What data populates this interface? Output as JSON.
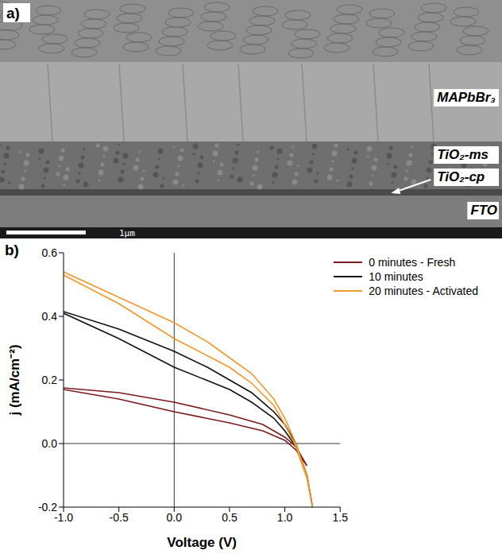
{
  "sem_image": {
    "letter": "a)",
    "layers": [
      "MAPbBr₃",
      "TiO₂-ms",
      "TiO₂-cp",
      "FTO"
    ],
    "scale_bar": "1μm"
  },
  "chart_letter": "b)",
  "chart_data": {
    "type": "line",
    "x_label": "Voltage (V)",
    "y_label": "j (mA/cm⁻²)",
    "xlim": [
      -1,
      1.5
    ],
    "ylim": [
      -0.2,
      0.6
    ],
    "xticks": [
      {
        "value": -1,
        "label": "-1.0"
      },
      {
        "value": -0.5,
        "label": "-0.5"
      },
      {
        "value": 0,
        "label": "0.0"
      },
      {
        "value": 0.5,
        "label": "0.5"
      },
      {
        "value": 1,
        "label": "1.0"
      },
      {
        "value": 1.5,
        "label": "1.5"
      }
    ],
    "yticks": [
      {
        "value": -0.2,
        "label": "-0.2"
      },
      {
        "value": 0,
        "label": "0.0"
      },
      {
        "value": 0.2,
        "label": "0.2"
      },
      {
        "value": 0.4,
        "label": "0.4"
      },
      {
        "value": 0.6,
        "label": "0.6"
      }
    ],
    "grid": false,
    "legend": "top-right",
    "series": [
      {
        "name": "0 minutes - Fresh",
        "color": "#7b1a1a",
        "x": [
          -1,
          -0.5,
          0,
          0.5,
          0.8,
          1.0,
          1.1,
          1.2,
          1.1,
          1.0,
          0.8,
          0.5,
          0,
          -0.5,
          -1
        ],
        "values": [
          0.17,
          0.14,
          0.1,
          0.065,
          0.04,
          0.01,
          -0.02,
          -0.07,
          -0.01,
          0.02,
          0.06,
          0.09,
          0.13,
          0.16,
          0.175
        ]
      },
      {
        "name": "10 minutes",
        "color": "#111111",
        "x": [
          -1,
          -0.5,
          0,
          0.5,
          0.7,
          0.9,
          1.0,
          1.1,
          1.2,
          1.25,
          1.2,
          1.1,
          1.0,
          0.9,
          0.7,
          0.5,
          0.3,
          0,
          -0.5,
          -1
        ],
        "values": [
          0.41,
          0.33,
          0.24,
          0.17,
          0.13,
          0.08,
          0.04,
          -0.01,
          -0.1,
          -0.2,
          -0.1,
          0.0,
          0.06,
          0.1,
          0.16,
          0.2,
          0.24,
          0.29,
          0.36,
          0.415
        ]
      },
      {
        "name": "20 minutes - Activated",
        "color": "#f0982e",
        "x": [
          -1,
          -0.5,
          0,
          0.5,
          0.7,
          0.9,
          1.0,
          1.1,
          1.2,
          1.25,
          1.2,
          1.1,
          1.0,
          0.9,
          0.7,
          0.5,
          0.3,
          0,
          -0.5,
          -1
        ],
        "values": [
          0.53,
          0.44,
          0.33,
          0.24,
          0.19,
          0.12,
          0.06,
          -0.01,
          -0.11,
          -0.2,
          -0.1,
          0.0,
          0.08,
          0.14,
          0.22,
          0.27,
          0.32,
          0.38,
          0.46,
          0.54
        ]
      }
    ]
  }
}
